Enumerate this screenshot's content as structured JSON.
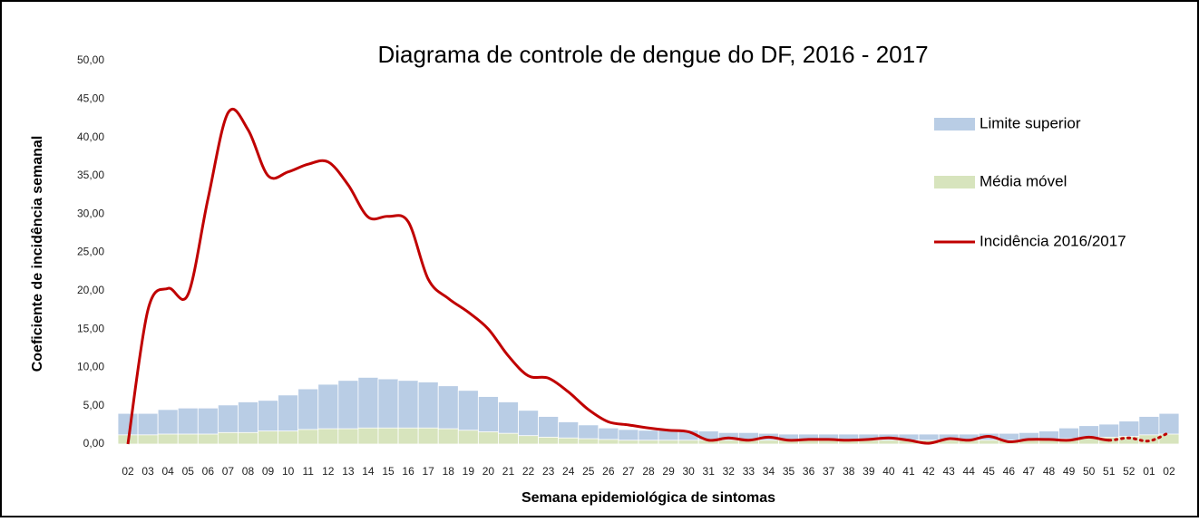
{
  "chart_data": {
    "type": "bar_line",
    "title": "Diagrama de controle de dengue do DF, 2016 - 2017",
    "ylabel": "Coeficiente de incidência semanal",
    "xlabel": "Semana epidemiológica de sintomas",
    "categories": [
      "02",
      "03",
      "04",
      "05",
      "06",
      "07",
      "08",
      "09",
      "10",
      "11",
      "12",
      "13",
      "14",
      "15",
      "16",
      "17",
      "18",
      "19",
      "20",
      "21",
      "22",
      "23",
      "24",
      "25",
      "26",
      "27",
      "28",
      "29",
      "30",
      "31",
      "32",
      "33",
      "34",
      "35",
      "36",
      "37",
      "38",
      "39",
      "40",
      "41",
      "42",
      "43",
      "44",
      "45",
      "46",
      "47",
      "48",
      "49",
      "50",
      "51",
      "52",
      "01",
      "02"
    ],
    "ylim": [
      0,
      50
    ],
    "yticks": [
      {
        "value": 0,
        "label": "0,00"
      },
      {
        "value": 5,
        "label": "5,00"
      },
      {
        "value": 10,
        "label": "10,00"
      },
      {
        "value": 15,
        "label": "15,00"
      },
      {
        "value": 20,
        "label": "20,00"
      },
      {
        "value": 25,
        "label": "25,00"
      },
      {
        "value": 30,
        "label": "30,00"
      },
      {
        "value": 35,
        "label": "35,00"
      },
      {
        "value": 40,
        "label": "40,00"
      },
      {
        "value": 45,
        "label": "45,00"
      },
      {
        "value": 50,
        "label": "50,00"
      }
    ],
    "legend": "right",
    "series": [
      {
        "name": "Limite superior",
        "kind": "bar",
        "color": "#b9cde5",
        "values": [
          4.0,
          4.0,
          4.5,
          4.7,
          4.7,
          5.1,
          5.5,
          5.7,
          6.4,
          7.2,
          7.8,
          8.3,
          8.7,
          8.5,
          8.3,
          8.1,
          7.6,
          7.0,
          6.2,
          5.5,
          4.4,
          3.6,
          2.9,
          2.5,
          2.1,
          1.9,
          1.8,
          1.8,
          1.8,
          1.7,
          1.5,
          1.5,
          1.4,
          1.3,
          1.3,
          1.3,
          1.3,
          1.3,
          1.3,
          1.3,
          1.3,
          1.3,
          1.3,
          1.4,
          1.4,
          1.5,
          1.7,
          2.1,
          2.4,
          2.6,
          3.0,
          3.6,
          4.0
        ]
      },
      {
        "name": "Média móvel",
        "kind": "bar",
        "color": "#d7e4bd",
        "values": [
          1.2,
          1.2,
          1.3,
          1.3,
          1.3,
          1.5,
          1.5,
          1.7,
          1.7,
          1.9,
          2.0,
          2.0,
          2.1,
          2.1,
          2.1,
          2.1,
          2.0,
          1.8,
          1.6,
          1.4,
          1.1,
          0.9,
          0.8,
          0.7,
          0.6,
          0.5,
          0.5,
          0.5,
          0.5,
          0.5,
          0.5,
          0.5,
          0.5,
          0.5,
          0.5,
          0.5,
          0.5,
          0.5,
          0.5,
          0.5,
          0.5,
          0.5,
          0.5,
          0.5,
          0.5,
          0.5,
          0.6,
          0.7,
          0.8,
          0.9,
          1.0,
          1.2,
          1.3
        ]
      },
      {
        "name": "Incidência 2016/2017",
        "kind": "line",
        "color": "#c00000",
        "dotted_from": "51",
        "values": [
          0,
          17.5,
          20.3,
          19.5,
          32,
          43.2,
          41,
          35,
          35.5,
          36.5,
          36.8,
          33.8,
          29.6,
          29.7,
          29.0,
          21.5,
          19.0,
          17.2,
          15.0,
          11.5,
          8.9,
          8.6,
          6.8,
          4.5,
          2.9,
          2.5,
          2.1,
          1.8,
          1.6,
          0.5,
          0.8,
          0.5,
          0.9,
          0.5,
          0.6,
          0.6,
          0.5,
          0.6,
          0.8,
          0.5,
          0.1,
          0.7,
          0.5,
          1.0,
          0.3,
          0.6,
          0.6,
          0.5,
          0.9,
          0.5,
          0.8,
          0.4,
          1.5
        ]
      }
    ]
  }
}
